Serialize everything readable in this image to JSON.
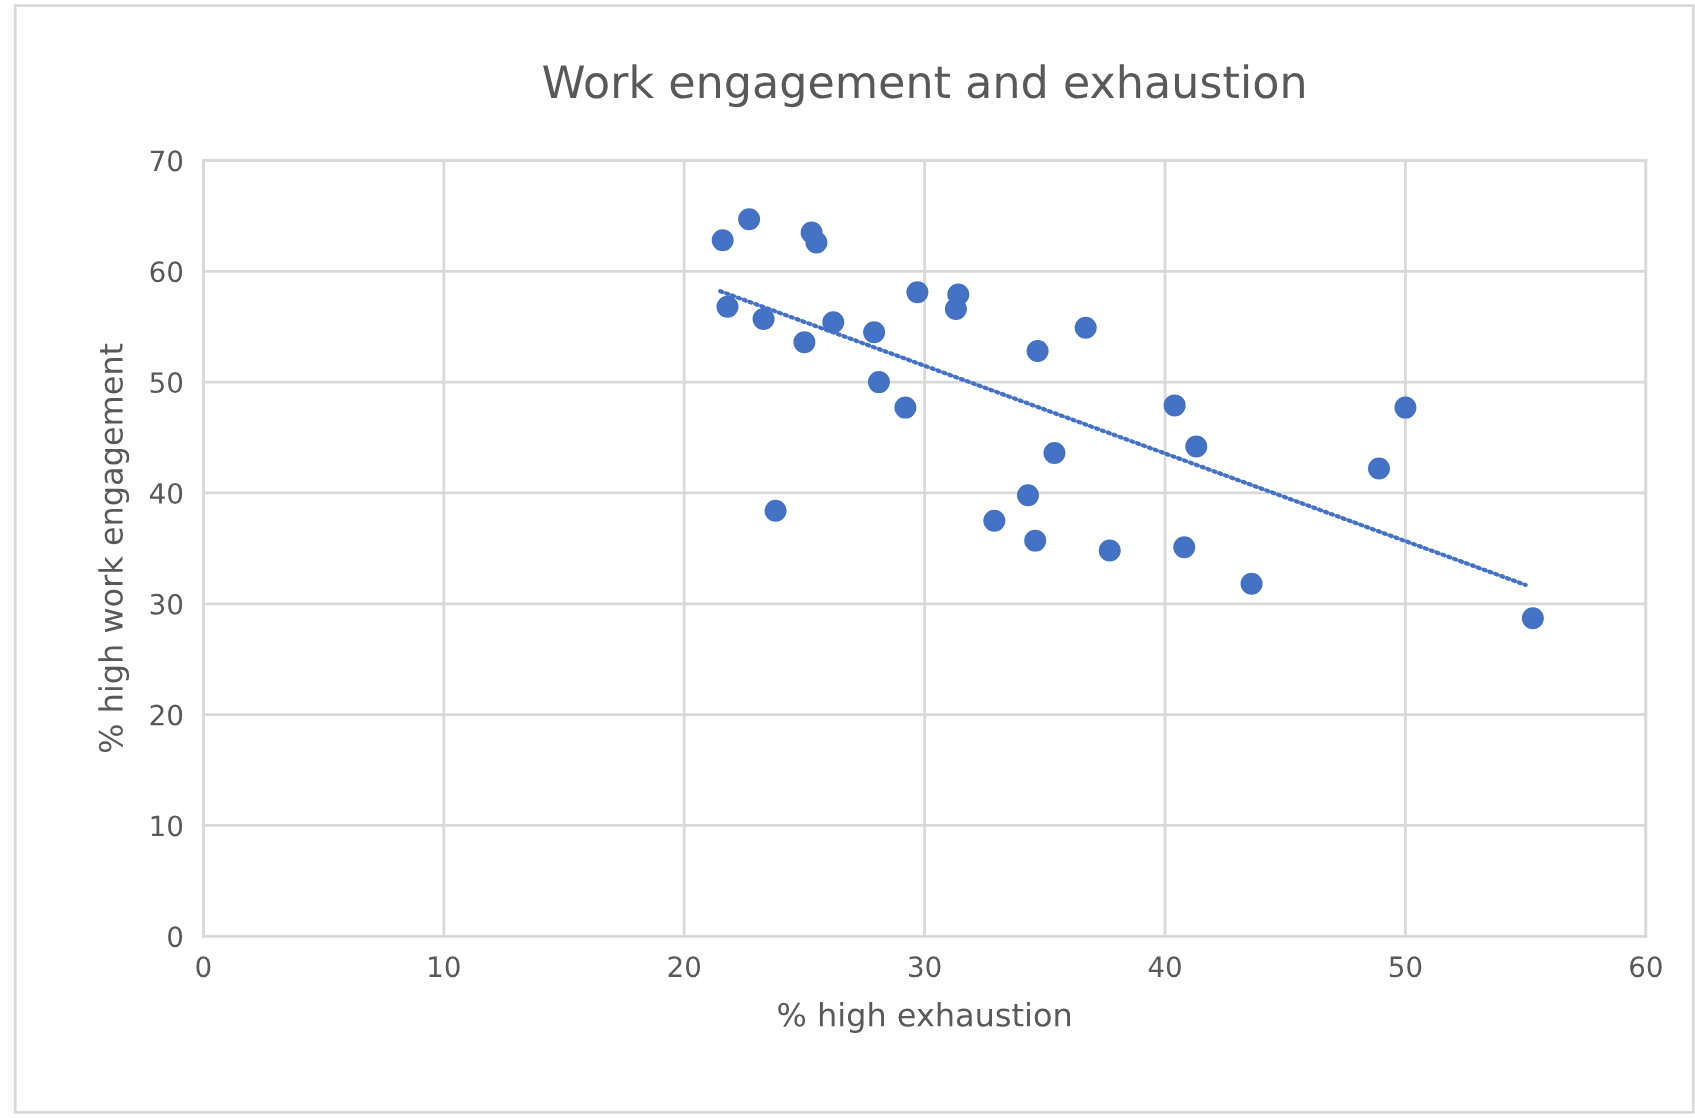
{
  "chart_data": {
    "type": "scatter",
    "title": "Work engagement and exhaustion",
    "xlabel": "% high exhaustion",
    "ylabel": "% high work engagement",
    "series": [
      {
        "color": "#4472c4",
        "marker": "circle",
        "x": [
          21.6,
          22.7,
          25.3,
          25.5,
          21.8,
          23.3,
          26.2,
          25.0,
          27.9,
          28.1,
          29.2,
          29.7,
          31.4,
          31.3,
          34.7,
          36.7,
          23.8,
          32.9,
          34.3,
          34.6,
          35.4,
          37.7,
          40.4,
          41.3,
          40.8,
          43.6,
          48.9,
          50.0,
          55.3
        ],
        "values": [
          62.8,
          64.7,
          63.5,
          62.6,
          56.8,
          55.7,
          55.4,
          53.6,
          54.5,
          50.0,
          47.7,
          58.1,
          57.9,
          56.6,
          52.8,
          54.9,
          38.4,
          37.5,
          39.8,
          35.7,
          43.6,
          34.8,
          47.9,
          44.2,
          35.1,
          31.8,
          42.2,
          47.7,
          28.7
        ]
      },
      {
        "type": "line",
        "color": "#4472c4",
        "line_style": "dotted",
        "marker": "none",
        "x": [
          21.5,
          55.0
        ],
        "values": [
          58.2,
          31.7
        ]
      }
    ],
    "xlim": [
      0,
      60
    ],
    "xticks": [
      0,
      10,
      20,
      30,
      40,
      50,
      60
    ],
    "ylim": [
      0,
      70
    ],
    "yticks": [
      0,
      10,
      20,
      30,
      40,
      50,
      60,
      70
    ],
    "grid": true,
    "legend": false
  }
}
